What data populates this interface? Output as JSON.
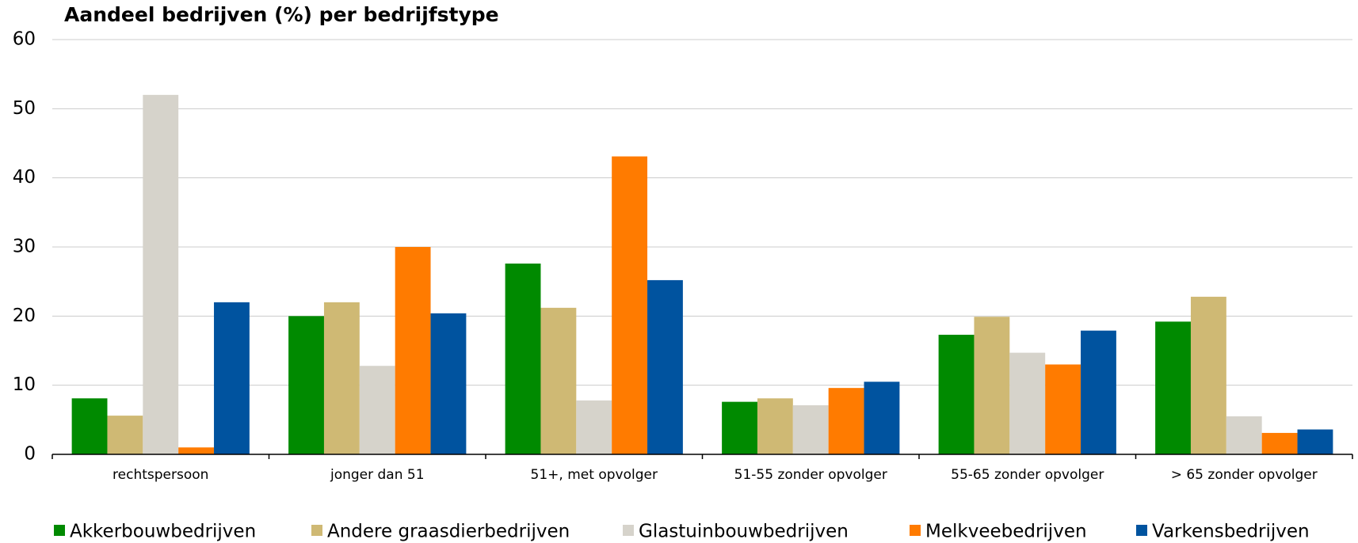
{
  "chart_data": {
    "type": "bar",
    "title": "Aandeel bedrijven (%) per bedrijfstype",
    "categories": [
      "rechtspersoon",
      "jonger dan 51",
      "51+, met opvolger",
      "51-55 zonder opvolger",
      "55-65 zonder opvolger",
      "> 65 zonder opvolger"
    ],
    "series": [
      {
        "name": "Akkerbouwbedrijven",
        "color": "#008a00",
        "values": [
          8.1,
          20,
          27.6,
          7.6,
          17.3,
          19.2
        ]
      },
      {
        "name": "Andere graasdierbedrijven",
        "color": "#cfb974",
        "values": [
          5.6,
          22,
          21.2,
          8.1,
          19.9,
          22.8
        ]
      },
      {
        "name": "Glastuinbouwbedrijven",
        "color": "#d6d3cb",
        "values": [
          52,
          12.8,
          7.8,
          7.1,
          14.7,
          5.5
        ]
      },
      {
        "name": "Melkveebedrijven",
        "color": "#ff7b00",
        "values": [
          1.0,
          30,
          43.1,
          9.6,
          13,
          3.1
        ]
      },
      {
        "name": "Varkensbedrijven",
        "color": "#00539f",
        "values": [
          22,
          20.4,
          25.2,
          10.5,
          17.9,
          3.6
        ]
      }
    ],
    "ylim": [
      0,
      60
    ],
    "yticks": [
      0,
      10,
      20,
      30,
      40,
      50,
      60
    ],
    "grid": true,
    "legend": "bottom"
  }
}
